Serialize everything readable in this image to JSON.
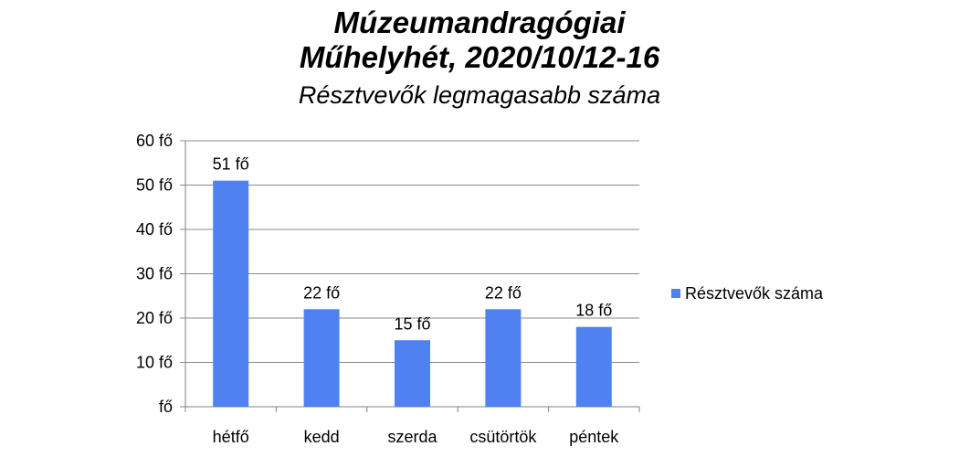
{
  "title_line1": "Múzeumandragógiai",
  "title_line2": "Műhelyhét, 2020/10/12-16",
  "subtitle": "Résztvevők legmagasabb száma",
  "chart_data": {
    "type": "bar",
    "title": "Múzeumandragógiai Műhelyhét, 2020/10/12-16",
    "subtitle": "Résztvevők legmagasabb száma",
    "categories": [
      "hétfő",
      "kedd",
      "szerda",
      "csütörtök",
      "péntek"
    ],
    "series": [
      {
        "name": "Résztvevők száma",
        "values": [
          51,
          22,
          15,
          22,
          18
        ],
        "color": "#4f81f0"
      }
    ],
    "data_labels": [
      "51 fő",
      "22 fő",
      "15 fő",
      "22 fő",
      "18 fő"
    ],
    "y_ticks": [
      0,
      10,
      20,
      30,
      40,
      50,
      60
    ],
    "y_tick_labels": [
      "fő",
      "10 fő",
      "20 fő",
      "30 fő",
      "40 fő",
      "50 fő",
      "60 fő"
    ],
    "ylim": [
      0,
      60
    ],
    "grid": true,
    "legend_position": "right"
  }
}
